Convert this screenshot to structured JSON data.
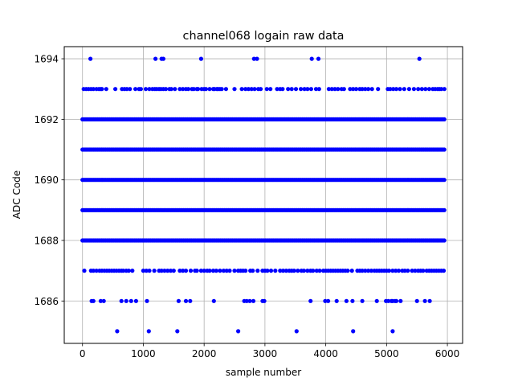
{
  "chart_data": {
    "type": "scatter",
    "title": "channel068 logain raw data",
    "xlabel": "sample number",
    "ylabel": "ADC Code",
    "xlim": [
      -300,
      6250
    ],
    "ylim": [
      1684.6,
      1694.4
    ],
    "xticks": [
      0,
      1000,
      2000,
      3000,
      4000,
      5000,
      6000
    ],
    "yticks": [
      1686,
      1688,
      1690,
      1692,
      1694
    ],
    "xtick_labels": [
      "0",
      "1000",
      "2000",
      "3000",
      "4000",
      "5000",
      "6000"
    ],
    "ytick_labels": [
      "1686",
      "1688",
      "1690",
      "1692",
      "1694"
    ],
    "grid": true,
    "marker": "circle",
    "series": [
      {
        "color": "#0000ff",
        "dense_levels": {
          "x_range": [
            0,
            5950
          ],
          "levels": [
            1688,
            1689,
            1690,
            1691,
            1692
          ]
        },
        "sparse_points": {
          "1694": [
            130,
            1200,
            1300,
            1330,
            1950,
            2820,
            2870,
            3770,
            3880,
            5540
          ],
          "1693": [
            20,
            60,
            100,
            140,
            180,
            230,
            270,
            300,
            320,
            390,
            540,
            650,
            690,
            730,
            780,
            870,
            930,
            960,
            1040,
            1100,
            1150,
            1190,
            1220,
            1260,
            1290,
            1330,
            1370,
            1430,
            1460,
            1520,
            1600,
            1650,
            1700,
            1740,
            1800,
            1830,
            1880,
            1900,
            1960,
            2000,
            2030,
            2090,
            2150,
            2170,
            2210,
            2230,
            2260,
            2290,
            2360,
            2500,
            2620,
            2680,
            2730,
            2780,
            2830,
            2890,
            2930,
            3030,
            3090,
            3200,
            3250,
            3290,
            3380,
            3440,
            3510,
            3590,
            3650,
            3700,
            3760,
            3840,
            3890,
            4050,
            4100,
            4150,
            4200,
            4260,
            4300,
            4400,
            4450,
            4500,
            4560,
            4600,
            4650,
            4700,
            4760,
            4860,
            5020,
            5060,
            5110,
            5160,
            5220,
            5290,
            5370,
            5450,
            5520,
            5580,
            5640,
            5700,
            5760,
            5800,
            5840,
            5870,
            5900,
            5950
          ],
          "1687": [
            30,
            140,
            180,
            230,
            280,
            320,
            360,
            400,
            440,
            480,
            520,
            560,
            600,
            640,
            670,
            720,
            760,
            820,
            1000,
            1050,
            1100,
            1180,
            1260,
            1300,
            1350,
            1400,
            1450,
            1500,
            1600,
            1650,
            1700,
            1780,
            1850,
            1880,
            1950,
            2000,
            2050,
            2090,
            2150,
            2200,
            2260,
            2320,
            2370,
            2420,
            2500,
            2560,
            2600,
            2640,
            2680,
            2760,
            2800,
            2880,
            2960,
            3000,
            3040,
            3100,
            3170,
            3250,
            3300,
            3350,
            3400,
            3440,
            3480,
            3540,
            3600,
            3640,
            3700,
            3750,
            3790,
            3850,
            3900,
            3960,
            4000,
            4040,
            4080,
            4120,
            4160,
            4200,
            4240,
            4280,
            4320,
            4360,
            4430,
            4520,
            4560,
            4600,
            4650,
            4700,
            4750,
            4800,
            4840,
            4880,
            4920,
            4960,
            5000,
            5040,
            5100,
            5150,
            5200,
            5260,
            5300,
            5350,
            5420,
            5470,
            5520,
            5560,
            5600,
            5660,
            5700,
            5740,
            5780,
            5820,
            5860,
            5900,
            5940
          ],
          "1686": [
            150,
            180,
            300,
            350,
            640,
            720,
            800,
            880,
            1060,
            1580,
            1700,
            1770,
            2160,
            2660,
            2700,
            2750,
            2810,
            2960,
            2990,
            3750,
            3990,
            4040,
            4180,
            4340,
            4440,
            4600,
            4840,
            4990,
            5030,
            5080,
            5100,
            5140,
            5160,
            5230,
            5500,
            5630,
            5710
          ],
          "1685": [
            570,
            1090,
            1560,
            2560,
            3520,
            4450,
            5100
          ]
        }
      }
    ]
  }
}
